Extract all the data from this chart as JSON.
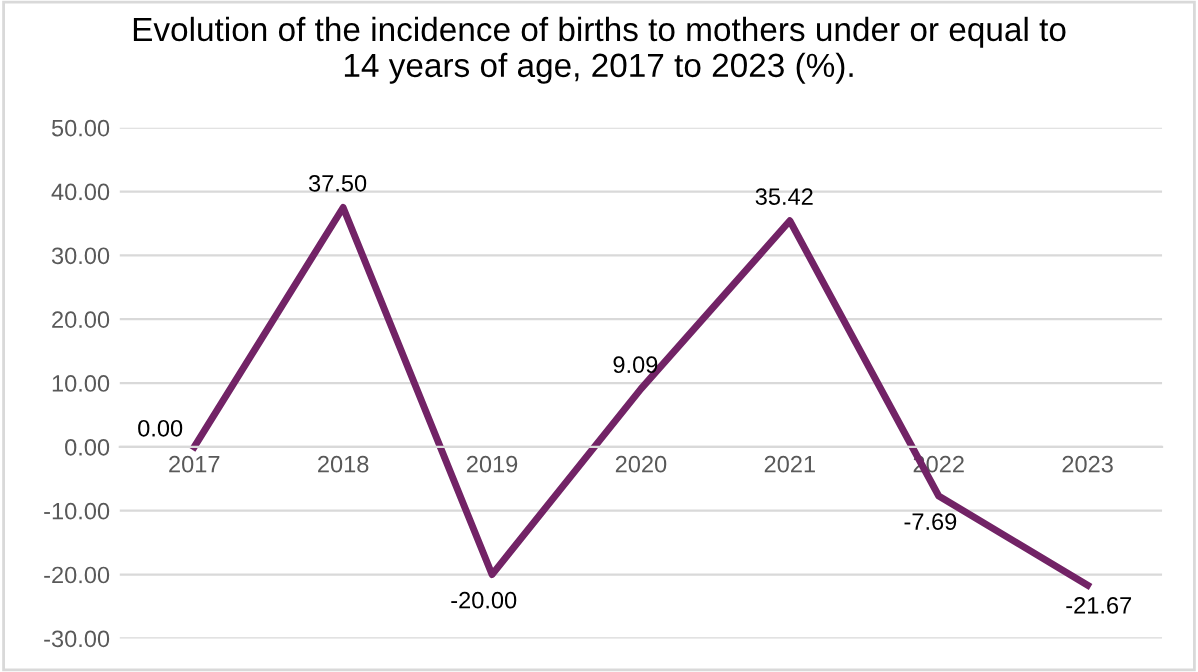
{
  "chart_data": {
    "type": "line",
    "title": "Evolution of the incidence of births to mothers under or equal to\n14 years of age, 2017 to 2023 (%).",
    "categories": [
      "2017",
      "2018",
      "2019",
      "2020",
      "2021",
      "2022",
      "2023"
    ],
    "series": [
      {
        "color": "#722366",
        "values": [
          0.0,
          37.5,
          -20.0,
          9.09,
          35.42,
          -7.69,
          -21.67
        ],
        "value_labels": [
          "0.00",
          "37.50",
          "-20.00",
          "9.09",
          "35.42",
          "-7.69",
          "-21.67"
        ]
      }
    ],
    "ylim": [
      -30,
      50
    ],
    "yticks": [
      {
        "value": -30,
        "label": "-30.00"
      },
      {
        "value": -20,
        "label": "-20.00"
      },
      {
        "value": -10,
        "label": "-10.00"
      },
      {
        "value": 0,
        "label": "0.00"
      },
      {
        "value": 10,
        "label": "10.00"
      },
      {
        "value": 20,
        "label": "20.00"
      },
      {
        "value": 30,
        "label": "30.00"
      },
      {
        "value": 40,
        "label": "40.00"
      },
      {
        "value": 50,
        "label": "50.00"
      }
    ],
    "grid": "y",
    "marker": "none",
    "line_style": "solid"
  }
}
